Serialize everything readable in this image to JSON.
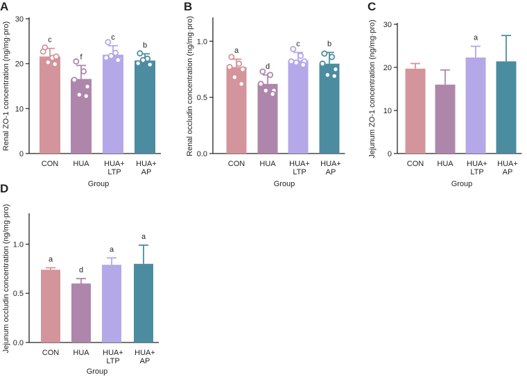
{
  "colors": {
    "CON": "#d4949b",
    "HUA": "#ae86ab",
    "LTP": "#b4a8e8",
    "AP": "#4c8ca0",
    "axis": "#222222"
  },
  "x_title": "Group",
  "chart_data": [
    {
      "panel": "A",
      "type": "bar",
      "ylabel": "Renal ZO-1 concentration (ng/mg·pro)",
      "xlabel": "Group",
      "ylim": [
        0,
        30
      ],
      "yticks": [
        0,
        10,
        20,
        30
      ],
      "categories": [
        [
          "CON"
        ],
        [
          "HUA"
        ],
        [
          "HUA+",
          "LTP"
        ],
        [
          "HUA+",
          "AP"
        ]
      ],
      "values": [
        21.6,
        16.6,
        22.0,
        20.7
      ],
      "errors": [
        1.8,
        3.0,
        2.0,
        1.5
      ],
      "sig": [
        "c",
        "f",
        "c",
        "b"
      ],
      "points": [
        [
          23.6,
          21.3,
          22.7,
          21.6,
          20.3,
          19.9
        ],
        [
          20.5,
          18.3,
          16.4,
          14.9,
          13.1,
          12.8
        ],
        [
          24.8,
          22.4,
          21.3,
          21.0,
          21.7,
          20.8
        ],
        [
          22.3,
          21.1,
          20.1,
          19.9,
          20.8,
          19.8
        ]
      ]
    },
    {
      "panel": "B",
      "type": "bar",
      "ylabel": "Renal occludin concentration (ng/mg·pro)",
      "xlabel": "Group",
      "ylim": [
        0,
        1.2
      ],
      "yticks": [
        0.0,
        0.5,
        1.0
      ],
      "tick_labels": [
        "0.0",
        "0.5",
        "1.0"
      ],
      "categories": [
        [
          "CON"
        ],
        [
          "HUA"
        ],
        [
          "HUA+",
          "LTP"
        ],
        [
          "HUA+",
          "AP"
        ]
      ],
      "values": [
        0.77,
        0.62,
        0.83,
        0.8
      ],
      "errors": [
        0.07,
        0.08,
        0.07,
        0.1
      ],
      "sig": [
        "a",
        "d",
        "c",
        "b"
      ],
      "points": [
        [
          0.86,
          0.8,
          0.77,
          0.75,
          0.68,
          0.62
        ],
        [
          0.73,
          0.7,
          0.62,
          0.56,
          0.56,
          0.53
        ],
        [
          0.93,
          0.87,
          0.82,
          0.82,
          0.81,
          0.79
        ],
        [
          0.89,
          0.86,
          0.8,
          0.75,
          0.7,
          0.69
        ]
      ]
    },
    {
      "panel": "C",
      "type": "bar",
      "ylabel": "Jejunum ZO-1 concentration (ng/mg·pro)",
      "xlabel": "Group",
      "ylim": [
        0,
        30
      ],
      "yticks": [
        0,
        10,
        20,
        30
      ],
      "categories": [
        [
          "CON"
        ],
        [
          "HUA"
        ],
        [
          "HUA+",
          "LTP"
        ],
        [
          "HUA+",
          "AP"
        ]
      ],
      "values": [
        19.7,
        16.0,
        22.3,
        21.4
      ],
      "errors": [
        1.2,
        3.4,
        2.6,
        6.0
      ],
      "sig": [
        "",
        "",
        "a",
        ""
      ]
    },
    {
      "panel": "D",
      "type": "bar",
      "ylabel": "Jejunum occludin concentration (ng/mg·pro)",
      "xlabel": "Group",
      "ylim": [
        0,
        1.3
      ],
      "yticks": [
        0.0,
        0.5,
        1.0
      ],
      "tick_labels": [
        "0.0",
        "0.5",
        "1.0"
      ],
      "categories": [
        [
          "CON"
        ],
        [
          "HUA"
        ],
        [
          "HUA+",
          "LTP"
        ],
        [
          "HUA+",
          "AP"
        ]
      ],
      "values": [
        0.74,
        0.6,
        0.79,
        0.8
      ],
      "errors": [
        0.02,
        0.05,
        0.07,
        0.19
      ],
      "sig": [
        "a",
        "d",
        "a",
        "a"
      ]
    }
  ]
}
